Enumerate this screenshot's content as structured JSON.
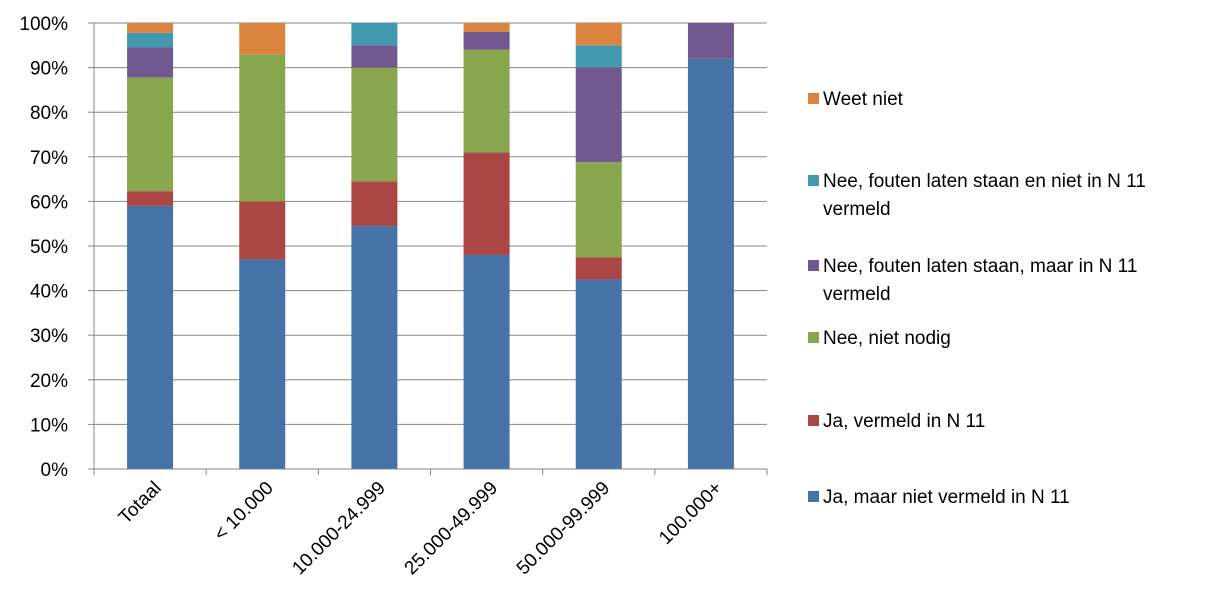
{
  "chart_data": {
    "type": "bar",
    "stacked": true,
    "percent": true,
    "categories": [
      "Totaal",
      "< 10.000",
      "10.000-24.999",
      "25.000-49.999",
      "50.000-99.999",
      "100.000+"
    ],
    "y_ticks": [
      "0%",
      "10%",
      "20%",
      "30%",
      "40%",
      "50%",
      "60%",
      "70%",
      "80%",
      "90%",
      "100%"
    ],
    "ylim": [
      0,
      100
    ],
    "grid": true,
    "legend_position": "right",
    "series": [
      {
        "name": "Ja, maar niet vermeld in N 11",
        "color": "#4572A7",
        "values": [
          59,
          47,
          54.5,
          48,
          42.5,
          92
        ]
      },
      {
        "name": "Ja, vermeld in N 11",
        "color": "#AA4643",
        "values": [
          3.3,
          13,
          10,
          23,
          5,
          0
        ]
      },
      {
        "name": "Nee, niet nodig",
        "color": "#89A54E",
        "values": [
          25.5,
          33,
          25.5,
          23,
          21.3,
          0
        ]
      },
      {
        "name": "Nee, fouten laten staan, maar in N 11 vermeld",
        "color": "#71588F",
        "values": [
          6.7,
          0,
          5,
          4,
          21.2,
          8
        ]
      },
      {
        "name": "Nee, fouten laten staan en niet in N 11 vermeld",
        "color": "#4198AF",
        "values": [
          3.3,
          0,
          5,
          0,
          5,
          0
        ]
      },
      {
        "name": "Weet niet",
        "color": "#DB843D",
        "values": [
          2.2,
          7,
          0,
          2,
          5,
          0
        ]
      }
    ]
  },
  "legend": {
    "items": [
      {
        "label": "Weet niet",
        "color": "#DB843D"
      },
      {
        "label": "Nee, fouten laten staan en niet in N 11 vermeld",
        "color": "#4198AF"
      },
      {
        "label": "Nee, fouten laten staan, maar in N 11 vermeld",
        "color": "#71588F"
      },
      {
        "label": "Nee, niet nodig",
        "color": "#89A54E"
      },
      {
        "label": "Ja, vermeld in N 11",
        "color": "#AA4643"
      },
      {
        "label": "Ja, maar niet vermeld in N 11",
        "color": "#4572A7"
      }
    ]
  }
}
